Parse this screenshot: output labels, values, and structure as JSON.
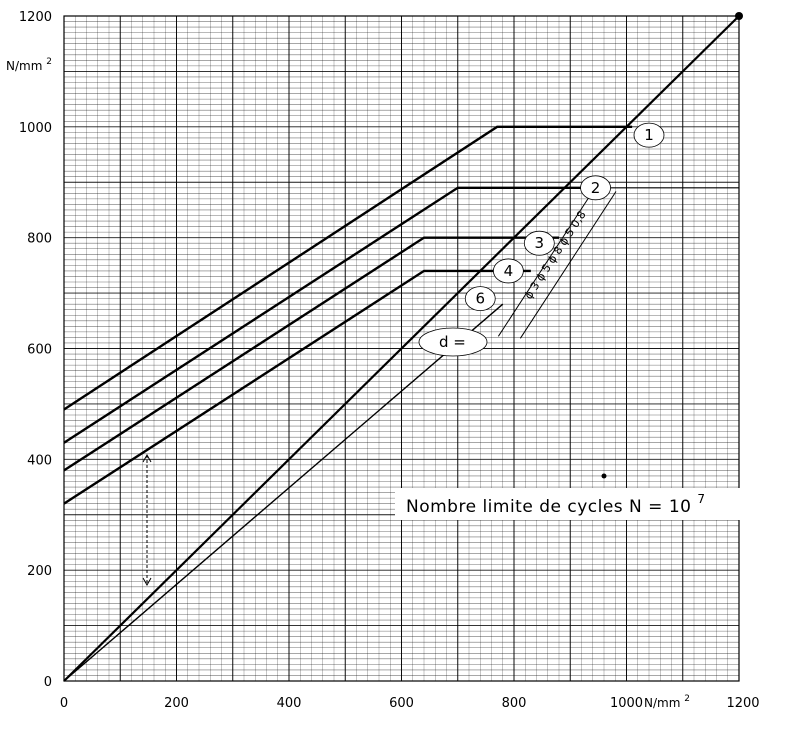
{
  "chart_data": {
    "type": "line",
    "x_unit": "N/mm2",
    "y_unit": "N/mm2",
    "xlim": [
      0,
      1200
    ],
    "ylim": [
      0,
      1200
    ],
    "x_ticks": [
      0,
      200,
      400,
      600,
      800,
      1000,
      1200
    ],
    "y_ticks": [
      0,
      200,
      400,
      600,
      800,
      1000,
      1200
    ],
    "x_tick_labels": [
      "0",
      "200",
      "400",
      "600",
      "800",
      "1000",
      "1200"
    ],
    "y_tick_labels": [
      "0",
      "200",
      "400",
      "600",
      "800",
      "1000",
      "1200"
    ],
    "grid": true,
    "diagonal": {
      "x": [
        0,
        1200
      ],
      "y": [
        0,
        1200
      ]
    },
    "series": [
      {
        "name": "1",
        "x": [
          0,
          770,
          1010
        ],
        "y": [
          490,
          1000,
          1000
        ]
      },
      {
        "name": "2",
        "x": [
          0,
          700,
          960
        ],
        "y": [
          430,
          890,
          890
        ]
      },
      {
        "name": "3",
        "x": [
          0,
          640,
          880
        ],
        "y": [
          380,
          800,
          800
        ]
      },
      {
        "name": "4",
        "x": [
          0,
          640,
          830
        ],
        "y": [
          320,
          740,
          740
        ]
      },
      {
        "name": "6",
        "x": [
          0,
          780
        ],
        "y": [
          0,
          680
        ]
      }
    ],
    "series_labels": [
      {
        "text": "1",
        "x": 1040,
        "y": 985
      },
      {
        "text": "2",
        "x": 945,
        "y": 890
      },
      {
        "text": "3",
        "x": 845,
        "y": 790
      },
      {
        "text": "4",
        "x": 790,
        "y": 740
      },
      {
        "text": "6",
        "x": 740,
        "y": 690
      }
    ],
    "annotations": {
      "d_label": "d =",
      "diameter_strip": "ϕ 3 ϕ 5 ϕ 8 ϕ 5 0,8",
      "note_prefix": "Nombre limite de cycles  N = 10",
      "note_exponent": "7"
    }
  }
}
